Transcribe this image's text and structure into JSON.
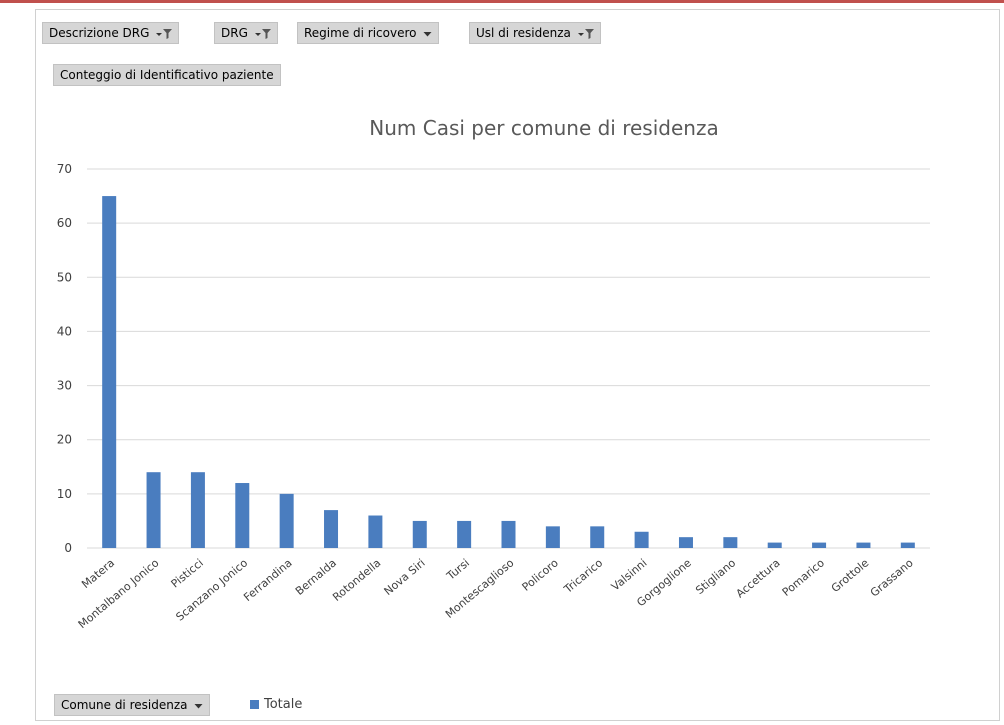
{
  "filters": [
    {
      "label": "Descrizione DRG",
      "icon": "filter-dropdown-icon"
    },
    {
      "label": "DRG",
      "icon": "filter-dropdown-icon"
    },
    {
      "label": "Regime di ricovero",
      "icon": "dropdown-arrow-icon"
    },
    {
      "label": "Usl di residenza",
      "icon": "filter-dropdown-icon"
    }
  ],
  "value_field": "Conteggio di Identificativo paziente",
  "axis_field": "Comune di residenza",
  "legend": "Totale",
  "colors": {
    "bar": "#4a7dbf",
    "grid": "#d9d9d9",
    "button": "#d6d6d6",
    "accent": "#c0504d"
  },
  "chart_data": {
    "type": "bar",
    "title": "Num Casi per comune di residenza",
    "categories": [
      "Matera",
      "Montalbano Jonico",
      "Pisticci",
      "Scanzano Jonico",
      "Ferrandina",
      "Bernalda",
      "Rotondella",
      "Nova Siri",
      "Tursi",
      "Montescaglioso",
      "Policoro",
      "Tricarico",
      "Valsinni",
      "Gorgoglione",
      "Stigliano",
      "Accettura",
      "Pomarico",
      "Grottole",
      "Grassano"
    ],
    "series": [
      {
        "name": "Totale",
        "values": [
          65,
          14,
          14,
          12,
          10,
          7,
          6,
          5,
          5,
          5,
          4,
          4,
          3,
          2,
          2,
          1,
          1,
          1,
          1
        ]
      }
    ],
    "yticks": [
      "0",
      "10",
      "20",
      "30",
      "40",
      "50",
      "60",
      "70"
    ],
    "ylim": [
      0,
      70
    ],
    "grid": true,
    "legend_position": "bottom"
  }
}
